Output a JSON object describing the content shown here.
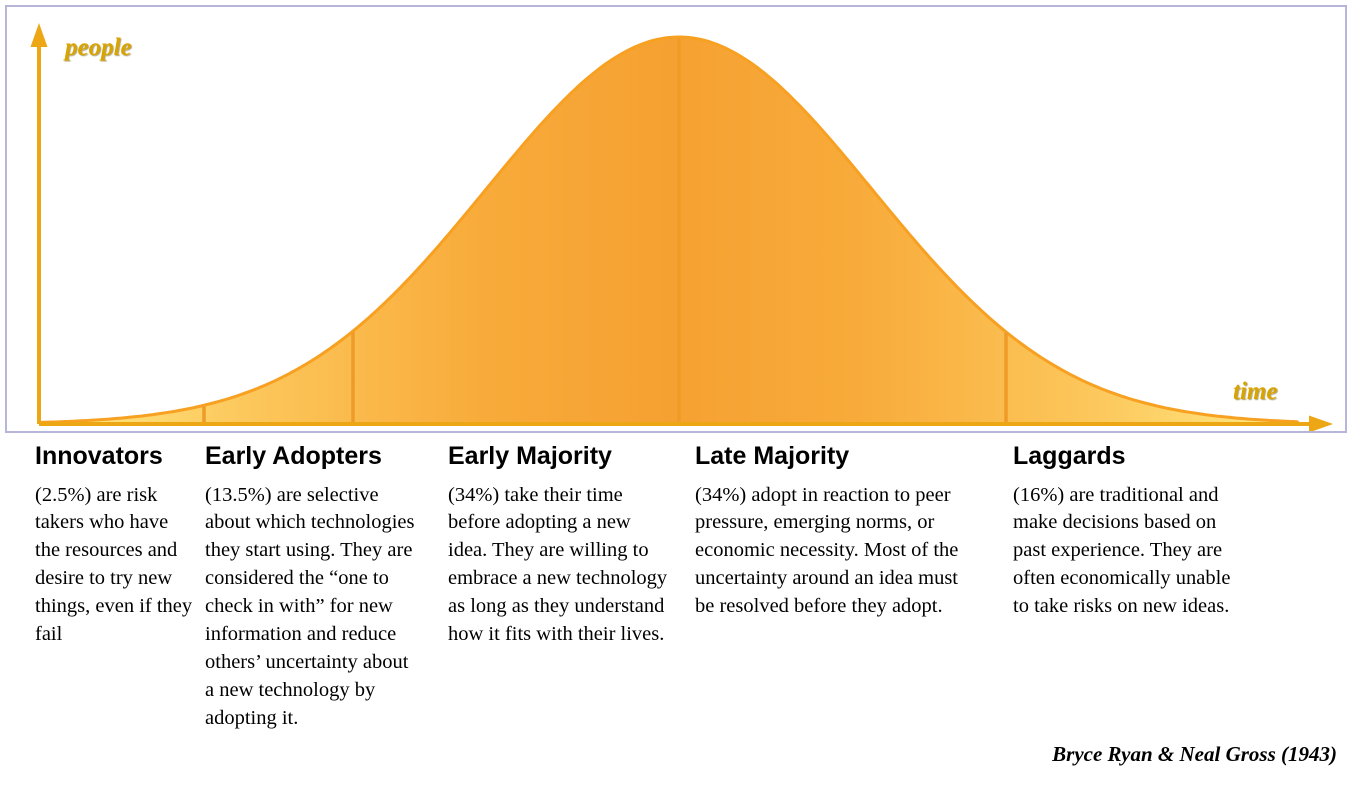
{
  "axes": {
    "y_label": "people",
    "x_label": "time"
  },
  "segments": [
    {
      "title": "Innovators",
      "description": "(2.5%) are risk takers who have the resources and desire to try new things, even if they fail"
    },
    {
      "title": "Early Adopters",
      "description": "(13.5%) are selective about which technologies they start using. They are considered the “one to check in with” for new information and reduce others’ uncertainty about a new technology by adopting it."
    },
    {
      "title": "Early Majority",
      "description": "(34%) take their time before adopting a new idea. They are willing to embrace a new technology as long as they understand how it fits with their lives."
    },
    {
      "title": "Late Majority",
      "description": "(34%) adopt in reaction to peer pressure, emerging norms, or economic necessity. Most of the uncertainty around an idea must be resolved before they adopt."
    },
    {
      "title": "Laggards",
      "description": "(16%) are traditional and make decisions based on past experience. They are often economically unable to take risks on new ideas."
    }
  ],
  "attribution": "Bryce Ryan & Neal Gross (1943)",
  "colors": {
    "curve_stroke": "#f7a021",
    "fill_edge": "#ffea85",
    "fill_mid": "#fcc65a",
    "fill_center": "#f5a132",
    "axis": "#eda715",
    "axis_label": "#d9a400",
    "frame_border": "#b8b5db",
    "divider": "#ef9b28",
    "text": "#000000"
  },
  "chart_data": {
    "type": "area",
    "title": "",
    "xlabel": "time",
    "ylabel": "people",
    "distribution": "normal",
    "grid": false,
    "legend_position": "below",
    "categories": [
      "Innovators",
      "Early Adopters",
      "Early Majority",
      "Late Majority",
      "Laggards"
    ],
    "values": [
      2.5,
      13.5,
      34,
      34,
      16
    ],
    "annotations": [
      "Bryce Ryan & Neal Gross (1943)"
    ]
  }
}
